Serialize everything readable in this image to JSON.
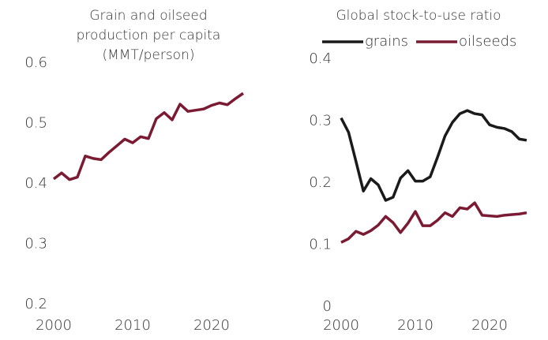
{
  "chart_data": [
    {
      "type": "line",
      "title": [
        "Grain and oilseed",
        "production per capita",
        "(MMT/person)"
      ],
      "x": [
        2000,
        2001,
        2002,
        2003,
        2004,
        2005,
        2006,
        2007,
        2008,
        2009,
        2010,
        2011,
        2012,
        2013,
        2014,
        2015,
        2016,
        2017,
        2018,
        2019,
        2020,
        2021,
        2022,
        2023,
        2024
      ],
      "series": [
        {
          "name": null,
          "color": "#7b1a33",
          "values": [
            0.408,
            0.418,
            0.407,
            0.411,
            0.446,
            0.442,
            0.44,
            0.452,
            0.463,
            0.474,
            0.468,
            0.478,
            0.475,
            0.508,
            0.518,
            0.506,
            0.532,
            0.52,
            0.522,
            0.524,
            0.53,
            0.534,
            0.531,
            0.541,
            0.55
          ]
        }
      ],
      "xlim": [
        2000,
        2025
      ],
      "xticks": [
        2000,
        2010,
        2020
      ],
      "ylim": [
        0.2,
        0.6
      ],
      "yticks": [
        0.2,
        0.3,
        0.4,
        0.5,
        0.6
      ],
      "grid": false,
      "legend": false
    },
    {
      "type": "line",
      "title": [
        "Global stock-to-use ratio"
      ],
      "x": [
        2000,
        2001,
        2002,
        2003,
        2004,
        2005,
        2006,
        2007,
        2008,
        2009,
        2010,
        2011,
        2012,
        2013,
        2014,
        2015,
        2016,
        2017,
        2018,
        2019,
        2020,
        2021,
        2022,
        2023,
        2024,
        2025
      ],
      "series": [
        {
          "name": "grains",
          "color": "#1a1a1a",
          "values": [
            0.305,
            0.282,
            0.235,
            0.187,
            0.207,
            0.197,
            0.172,
            0.177,
            0.208,
            0.22,
            0.203,
            0.203,
            0.21,
            0.242,
            0.276,
            0.298,
            0.312,
            0.317,
            0.312,
            0.31,
            0.294,
            0.29,
            0.288,
            0.283,
            0.271,
            0.269
          ]
        },
        {
          "name": "oilseeds",
          "color": "#7b1a33",
          "values": [
            0.104,
            0.11,
            0.122,
            0.117,
            0.123,
            0.132,
            0.146,
            0.136,
            0.12,
            0.135,
            0.154,
            0.131,
            0.131,
            0.14,
            0.152,
            0.146,
            0.16,
            0.158,
            0.168,
            0.148,
            0.147,
            0.146,
            0.148,
            0.149,
            0.15,
            0.152
          ]
        }
      ],
      "xlim": [
        2000,
        2025
      ],
      "xticks": [
        2000,
        2010,
        2020
      ],
      "ylim": [
        0,
        0.4
      ],
      "yticks": [
        0,
        0.1,
        0.2,
        0.3,
        0.4
      ],
      "grid": false,
      "legend": "top"
    }
  ]
}
